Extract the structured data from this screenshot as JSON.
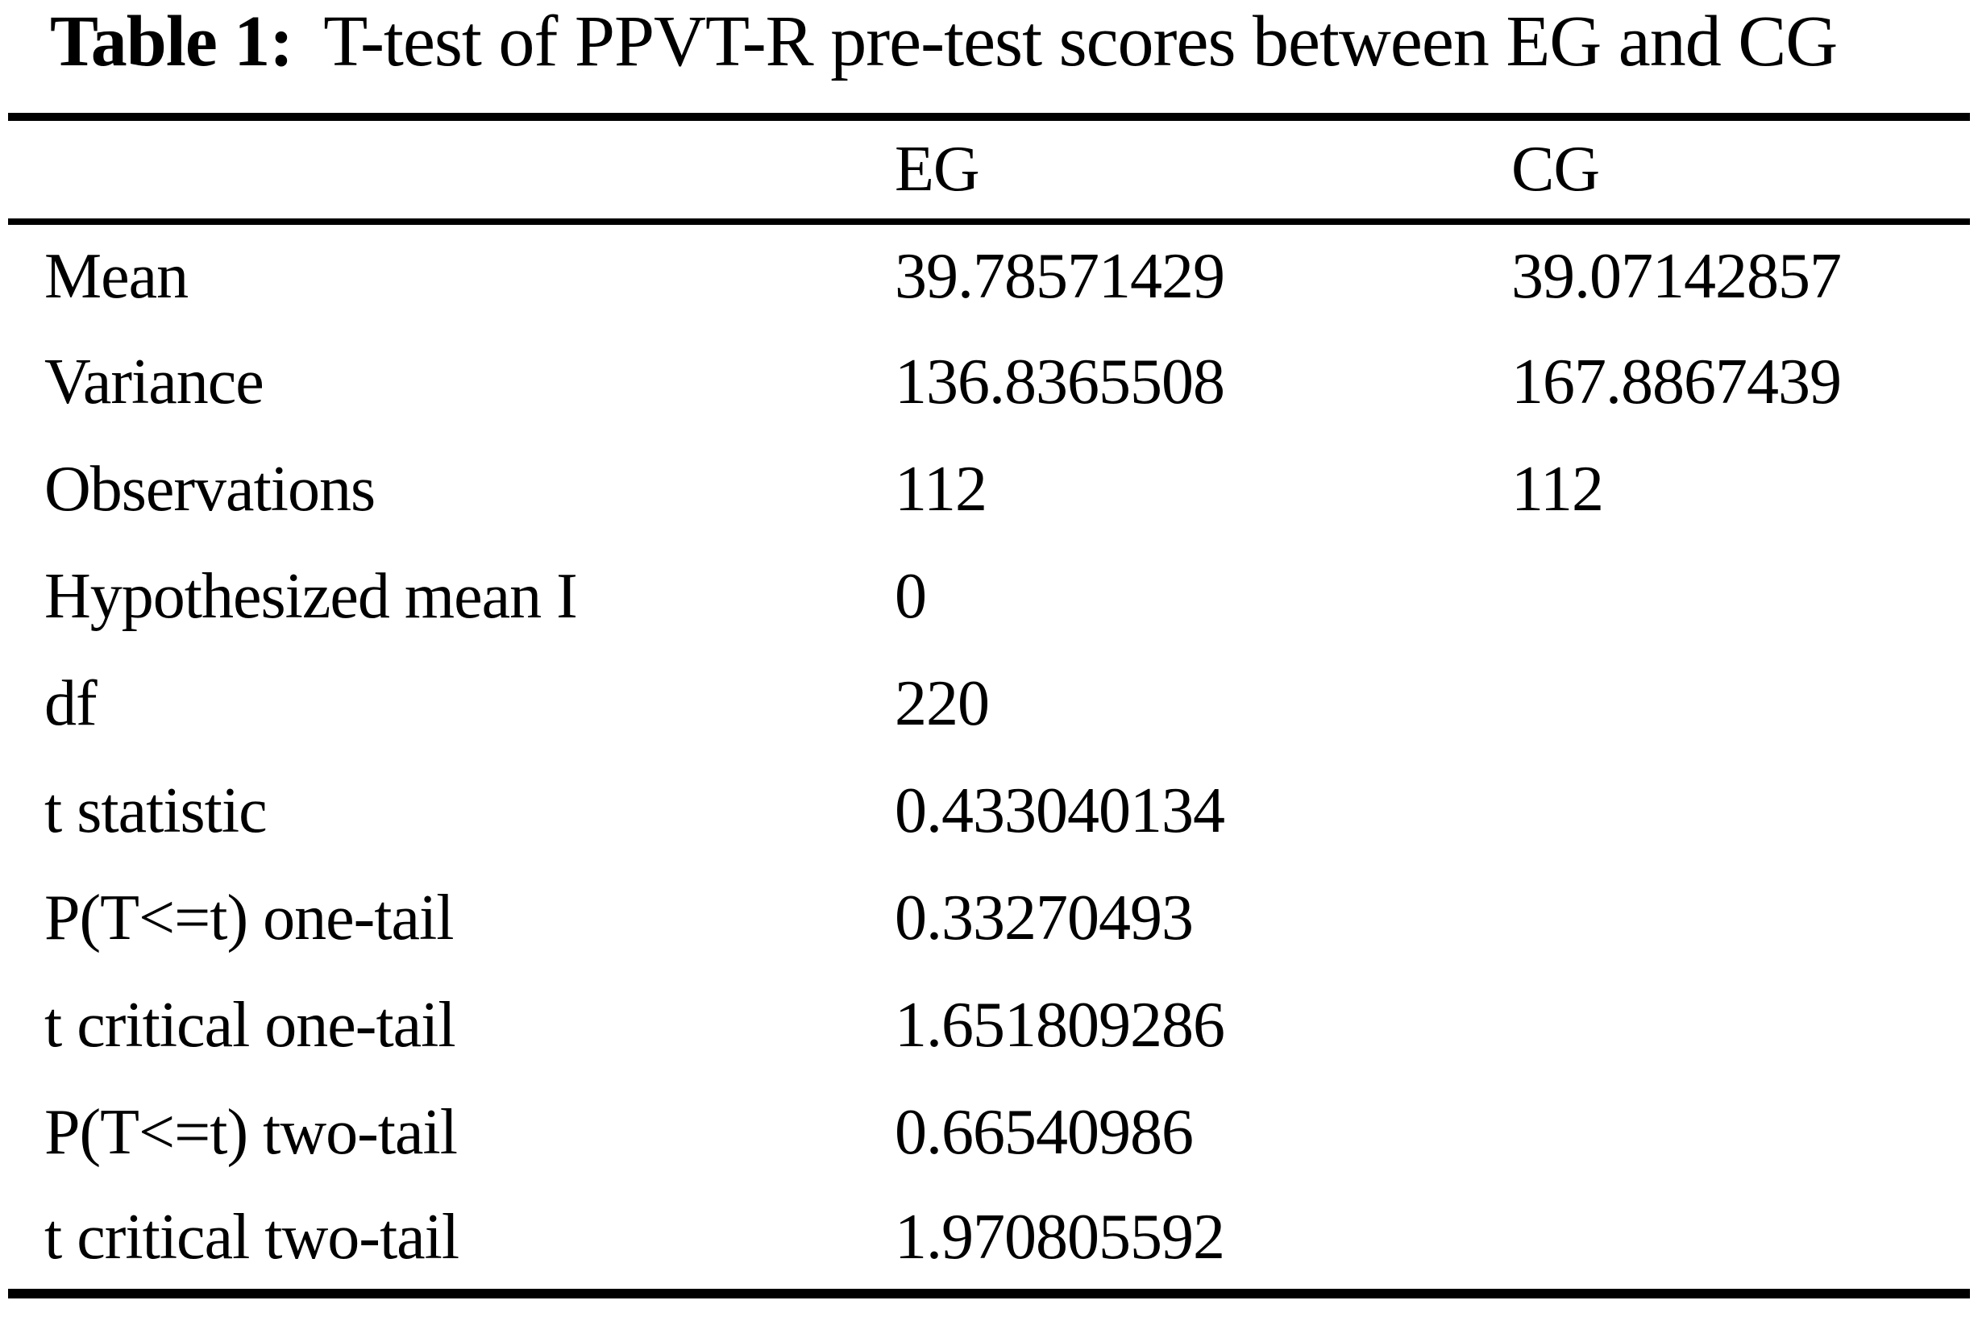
{
  "title": {
    "label": "Table 1:",
    "text": "T-test of PPVT-R pre-test scores between EG and CG"
  },
  "table": {
    "header": {
      "eg": "EG",
      "cg": "CG"
    },
    "rows": [
      {
        "label": "Mean",
        "eg": "39.78571429",
        "cg": "39.07142857"
      },
      {
        "label": "Variance",
        "eg": "136.8365508",
        "cg": "167.8867439"
      },
      {
        "label": "Observations",
        "eg": "112",
        "cg": "112"
      },
      {
        "label": "Hypothesized mean I",
        "eg": "0",
        "cg": ""
      },
      {
        "label": "df",
        "eg": "220",
        "cg": ""
      },
      {
        "label": "t statistic",
        "eg": "0.433040134",
        "cg": ""
      },
      {
        "label": "P(T<=t) one-tail",
        "eg": "0.33270493",
        "cg": ""
      },
      {
        "label": "t critical one-tail",
        "eg": "1.651809286",
        "cg": ""
      },
      {
        "label": "P(T<=t) two-tail",
        "eg": "0.66540986",
        "cg": ""
      },
      {
        "label": "t critical two-tail",
        "eg": "1.970805592",
        "cg": ""
      }
    ]
  }
}
